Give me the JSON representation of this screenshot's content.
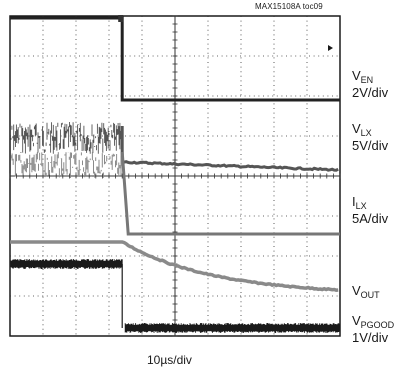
{
  "figure_id": "MAX15108A toc09",
  "chart_data": {
    "type": "line",
    "title": "",
    "grid": true,
    "x_divisions": 10,
    "y_divisions": 8,
    "xlabel": "10µs/div",
    "x_scale_per_div_us": 10,
    "trigger_div": 3.4,
    "traces": [
      {
        "name_main": "V",
        "name_sub": "EN",
        "scale": "2V/div",
        "low_div_from_top": 2.1,
        "high_div_from_top": 0.05,
        "event_div": 3.4,
        "behavior": "high then low"
      },
      {
        "name_main": "V",
        "name_sub": "LX",
        "scale": "5V/div",
        "switching_band_div_from_top": [
          2.65,
          3.45
        ],
        "settled_div_from_top": 3.65,
        "settled_end_div_from_top": 3.85,
        "event_div": 3.4,
        "behavior": "switching then settles"
      },
      {
        "name_main": "I",
        "name_sub": "LX",
        "scale": "5A/div",
        "switching_band_div_from_top": [
          3.4,
          4.05
        ],
        "low_div_from_top": 5.45,
        "event_div": 3.4,
        "behavior": "switching then drops"
      },
      {
        "name_main": "V",
        "name_sub": "OUT",
        "scale": "",
        "start_div_from_top": 5.65,
        "end_div_from_top": 6.85,
        "event_div": 3.4,
        "behavior": "slow decay"
      },
      {
        "name_main": "V",
        "name_sub": "PGOOD",
        "scale": "1V/div",
        "high_div_from_top": 6.2,
        "low_div_from_top": 7.8,
        "event_div": 3.4,
        "behavior": "high then low"
      }
    ]
  }
}
